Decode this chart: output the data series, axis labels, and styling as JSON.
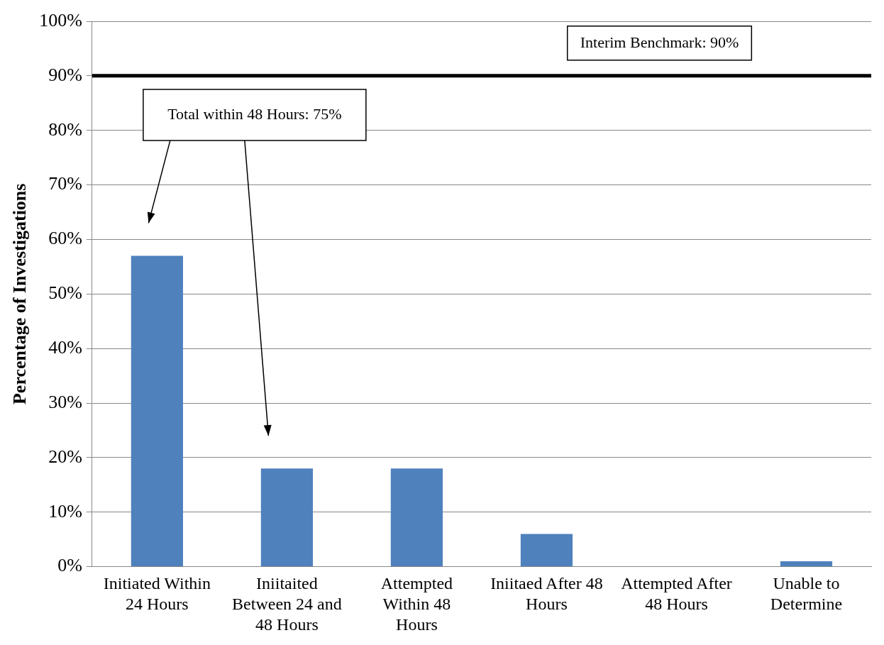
{
  "chart_data": {
    "type": "bar",
    "ylabel": "Percentage of Investigations",
    "categories": [
      "Initiated Within 24 Hours",
      "Iniitaited Between 24 and 48 Hours",
      "Attempted Within 48 Hours",
      "Iniitaed After 48 Hours",
      "Attempted After 48 Hours",
      "Unable to Determine"
    ],
    "values": [
      57,
      18,
      18,
      6,
      0,
      1
    ],
    "color": "#4f81bd",
    "ylim": [
      0,
      100
    ],
    "yticks": [
      {
        "value": 0,
        "label": "0%"
      },
      {
        "value": 10,
        "label": "10%"
      },
      {
        "value": 20,
        "label": "20%"
      },
      {
        "value": 30,
        "label": "30%"
      },
      {
        "value": 40,
        "label": "40%"
      },
      {
        "value": 50,
        "label": "50%"
      },
      {
        "value": 60,
        "label": "60%"
      },
      {
        "value": 70,
        "label": "70%"
      },
      {
        "value": 80,
        "label": "80%"
      },
      {
        "value": 90,
        "label": "90%"
      },
      {
        "value": 100,
        "label": "100%"
      }
    ],
    "grid": "y",
    "legend": false,
    "ref_lines": [
      {
        "axis": "y",
        "value": 90,
        "label": "Interim Benchmark: 90%",
        "color": "#000000"
      }
    ],
    "annotations": [
      "Total within 48 Hours: 75%"
    ]
  }
}
